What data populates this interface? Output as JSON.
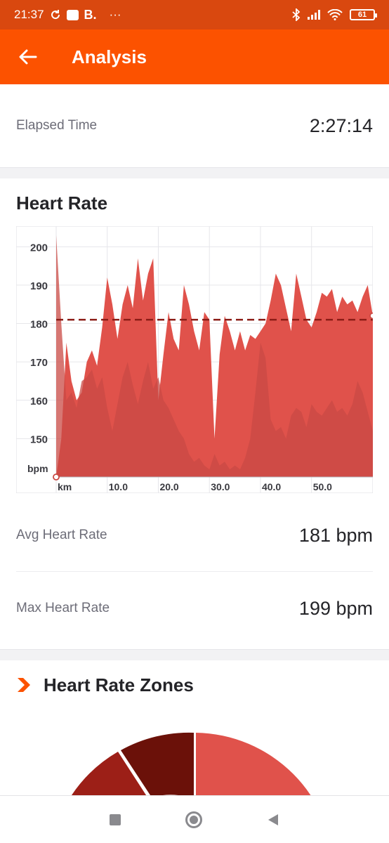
{
  "status": {
    "time": "21:37",
    "b_label": "B.",
    "more": "···",
    "battery": "61"
  },
  "appbar": {
    "title": "Analysis"
  },
  "elapsed": {
    "label": "Elapsed Time",
    "value": "2:27:14"
  },
  "heart_rate": {
    "title": "Heart Rate",
    "avg_label": "Avg Heart Rate",
    "avg_value": "181 bpm",
    "max_label": "Max Heart Rate",
    "max_value": "199 bpm"
  },
  "zones": {
    "title": "Heart Rate Zones"
  },
  "colors": {
    "brand": "#fc5200",
    "series": "#e0524b",
    "series_dark": "#c94a44",
    "avg_line": "#8b1c16"
  },
  "chart_data": {
    "type": "area",
    "xlabel": "km",
    "ylabel": "bpm",
    "x_ticks": [
      "10.0",
      "20.0",
      "30.0",
      "40.0",
      "50.0"
    ],
    "y_ticks": [
      "200",
      "190",
      "180",
      "170",
      "160",
      "150"
    ],
    "xlim": [
      0,
      62
    ],
    "ylim": [
      140,
      205
    ],
    "average_line": 181,
    "series": [
      {
        "values": [
          [
            0,
            140
          ],
          [
            1,
            150
          ],
          [
            2,
            175
          ],
          [
            3,
            165
          ],
          [
            4,
            160
          ],
          [
            5,
            162
          ],
          [
            6,
            170
          ],
          [
            7,
            173
          ],
          [
            8,
            169
          ],
          [
            9,
            179
          ],
          [
            10,
            192
          ],
          [
            11,
            185
          ],
          [
            12,
            176
          ],
          [
            13,
            185
          ],
          [
            14,
            190
          ],
          [
            15,
            184
          ],
          [
            16,
            197
          ],
          [
            17,
            186
          ],
          [
            18,
            193
          ],
          [
            19,
            197
          ],
          [
            20,
            160
          ],
          [
            21,
            172
          ],
          [
            22,
            183
          ],
          [
            23,
            176
          ],
          [
            24,
            173
          ],
          [
            25,
            190
          ],
          [
            26,
            185
          ],
          [
            27,
            178
          ],
          [
            28,
            173
          ],
          [
            29,
            183
          ],
          [
            30,
            181
          ],
          [
            31,
            150
          ],
          [
            32,
            172
          ],
          [
            33,
            182
          ],
          [
            34,
            178
          ],
          [
            35,
            173
          ],
          [
            36,
            178
          ],
          [
            37,
            173
          ],
          [
            38,
            177
          ],
          [
            39,
            176
          ],
          [
            40,
            178
          ],
          [
            41,
            180
          ],
          [
            42,
            186
          ],
          [
            43,
            193
          ],
          [
            44,
            190
          ],
          [
            45,
            184
          ],
          [
            46,
            178
          ],
          [
            47,
            193
          ],
          [
            48,
            187
          ],
          [
            49,
            181
          ],
          [
            50,
            179
          ],
          [
            51,
            183
          ],
          [
            52,
            188
          ],
          [
            53,
            187
          ],
          [
            54,
            189
          ],
          [
            55,
            183
          ],
          [
            56,
            187
          ],
          [
            57,
            185
          ],
          [
            58,
            186
          ],
          [
            59,
            183
          ],
          [
            60,
            187
          ],
          [
            61,
            190
          ],
          [
            62,
            182
          ]
        ]
      },
      {
        "values": [
          [
            0,
            203
          ],
          [
            1,
            180
          ],
          [
            2,
            160
          ],
          [
            3,
            162
          ],
          [
            4,
            158
          ],
          [
            5,
            165
          ],
          [
            6,
            166
          ],
          [
            7,
            168
          ],
          [
            8,
            163
          ],
          [
            9,
            166
          ],
          [
            10,
            158
          ],
          [
            11,
            152
          ],
          [
            12,
            159
          ],
          [
            13,
            166
          ],
          [
            14,
            170
          ],
          [
            15,
            164
          ],
          [
            16,
            159
          ],
          [
            17,
            165
          ],
          [
            18,
            170
          ],
          [
            19,
            163
          ],
          [
            20,
            166
          ],
          [
            21,
            160
          ],
          [
            22,
            158
          ],
          [
            23,
            155
          ],
          [
            24,
            152
          ],
          [
            25,
            150
          ],
          [
            26,
            146
          ],
          [
            27,
            144
          ],
          [
            28,
            145
          ],
          [
            29,
            143
          ],
          [
            30,
            142
          ],
          [
            31,
            146
          ],
          [
            32,
            143
          ],
          [
            33,
            144
          ],
          [
            34,
            142
          ],
          [
            35,
            143
          ],
          [
            36,
            142
          ],
          [
            37,
            145
          ],
          [
            38,
            150
          ],
          [
            39,
            162
          ],
          [
            40,
            175
          ],
          [
            41,
            171
          ],
          [
            42,
            155
          ],
          [
            43,
            152
          ],
          [
            44,
            153
          ],
          [
            45,
            150
          ],
          [
            46,
            156
          ],
          [
            47,
            158
          ],
          [
            48,
            157
          ],
          [
            49,
            153
          ],
          [
            50,
            159
          ],
          [
            51,
            157
          ],
          [
            52,
            156
          ],
          [
            53,
            158
          ],
          [
            54,
            160
          ],
          [
            55,
            157
          ],
          [
            56,
            158
          ],
          [
            57,
            156
          ],
          [
            58,
            159
          ],
          [
            59,
            165
          ],
          [
            60,
            162
          ],
          [
            61,
            157
          ],
          [
            62,
            152
          ]
        ]
      }
    ]
  }
}
